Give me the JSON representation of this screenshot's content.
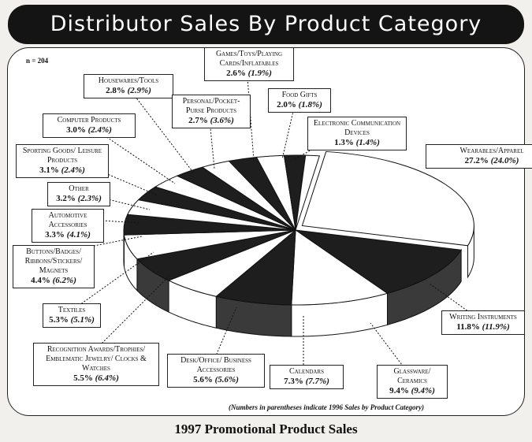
{
  "chart_data": {
    "type": "pie",
    "title": "Distributor Sales By Product Category",
    "subtitle": "1997 Promotional Product Sales",
    "note": "(Numbers in parentheses indicate 1996 Sales by Product Category)",
    "sample": "n = 204",
    "series_names": [
      "1997",
      "1996"
    ],
    "slices": [
      {
        "label": "Wearables/Apparel",
        "value": 27.2,
        "value_1996": 24.0,
        "v_text": "27.2%",
        "p_text": "(24.0%)",
        "fill": "#ffffff"
      },
      {
        "label": "Writing Instruments",
        "value": 11.8,
        "value_1996": 11.9,
        "v_text": "11.8%",
        "p_text": "(11.9%)",
        "fill": "#1e1e1e"
      },
      {
        "label": "Glassware/ Ceramics",
        "value": 9.4,
        "value_1996": 9.4,
        "v_text": "9.4%",
        "p_text": "(9.4%)",
        "fill": "#ffffff"
      },
      {
        "label": "Calendars",
        "value": 7.3,
        "value_1996": 7.7,
        "v_text": "7.3%",
        "p_text": "(7.7%)",
        "fill": "#1e1e1e"
      },
      {
        "label": "Desk/Office/ Business Accessories",
        "value": 5.6,
        "value_1996": 5.6,
        "v_text": "5.6%",
        "p_text": "(5.6%)",
        "fill": "#ffffff"
      },
      {
        "label": "Recognition Awards/Trophies/ Emblematic Jewelry/ Clocks & Watches",
        "value": 5.5,
        "value_1996": 6.4,
        "v_text": "5.5%",
        "p_text": "(6.4%)",
        "fill": "#1e1e1e"
      },
      {
        "label": "Textiles",
        "value": 5.3,
        "value_1996": 5.1,
        "v_text": "5.3%",
        "p_text": "(5.1%)",
        "fill": "#ffffff"
      },
      {
        "label": "Buttons/Badges/ Ribbons/Stickers/ Magnets",
        "value": 4.4,
        "value_1996": 6.2,
        "v_text": "4.4%",
        "p_text": "(6.2%)",
        "fill": "#1e1e1e"
      },
      {
        "label": "Automotive Accessories",
        "value": 3.3,
        "value_1996": 4.1,
        "v_text": "3.3%",
        "p_text": "(4.1%)",
        "fill": "#ffffff"
      },
      {
        "label": "Other",
        "value": 3.2,
        "value_1996": 2.3,
        "v_text": "3.2%",
        "p_text": "(2.3%)",
        "fill": "#1e1e1e"
      },
      {
        "label": "Sporting Goods/ Leisure Products",
        "value": 3.1,
        "value_1996": 2.4,
        "v_text": "3.1%",
        "p_text": "(2.4%)",
        "fill": "#ffffff"
      },
      {
        "label": "Computer Products",
        "value": 3.0,
        "value_1996": 2.4,
        "v_text": "3.0%",
        "p_text": "(2.4%)",
        "fill": "#1e1e1e"
      },
      {
        "label": "Housewares/Tools",
        "value": 2.8,
        "value_1996": 2.9,
        "v_text": "2.8%",
        "p_text": "(2.9%)",
        "fill": "#ffffff"
      },
      {
        "label": "Personal/Pocket- Purse Products",
        "value": 2.7,
        "value_1996": 3.6,
        "v_text": "2.7%",
        "p_text": "(3.6%)",
        "fill": "#1e1e1e"
      },
      {
        "label": "Games/Toys/Playing Cards/Inflatables",
        "value": 2.6,
        "value_1996": 1.9,
        "v_text": "2.6%",
        "p_text": "(1.9%)",
        "fill": "#ffffff"
      },
      {
        "label": "Food Gifts",
        "value": 2.0,
        "value_1996": 1.8,
        "v_text": "2.0%",
        "p_text": "(1.8%)",
        "fill": "#1e1e1e"
      },
      {
        "label": "Electronic Communication Devices",
        "value": 1.3,
        "value_1996": 1.4,
        "v_text": "1.3%",
        "p_text": "(1.4%)",
        "fill": "#ffffff"
      }
    ]
  }
}
